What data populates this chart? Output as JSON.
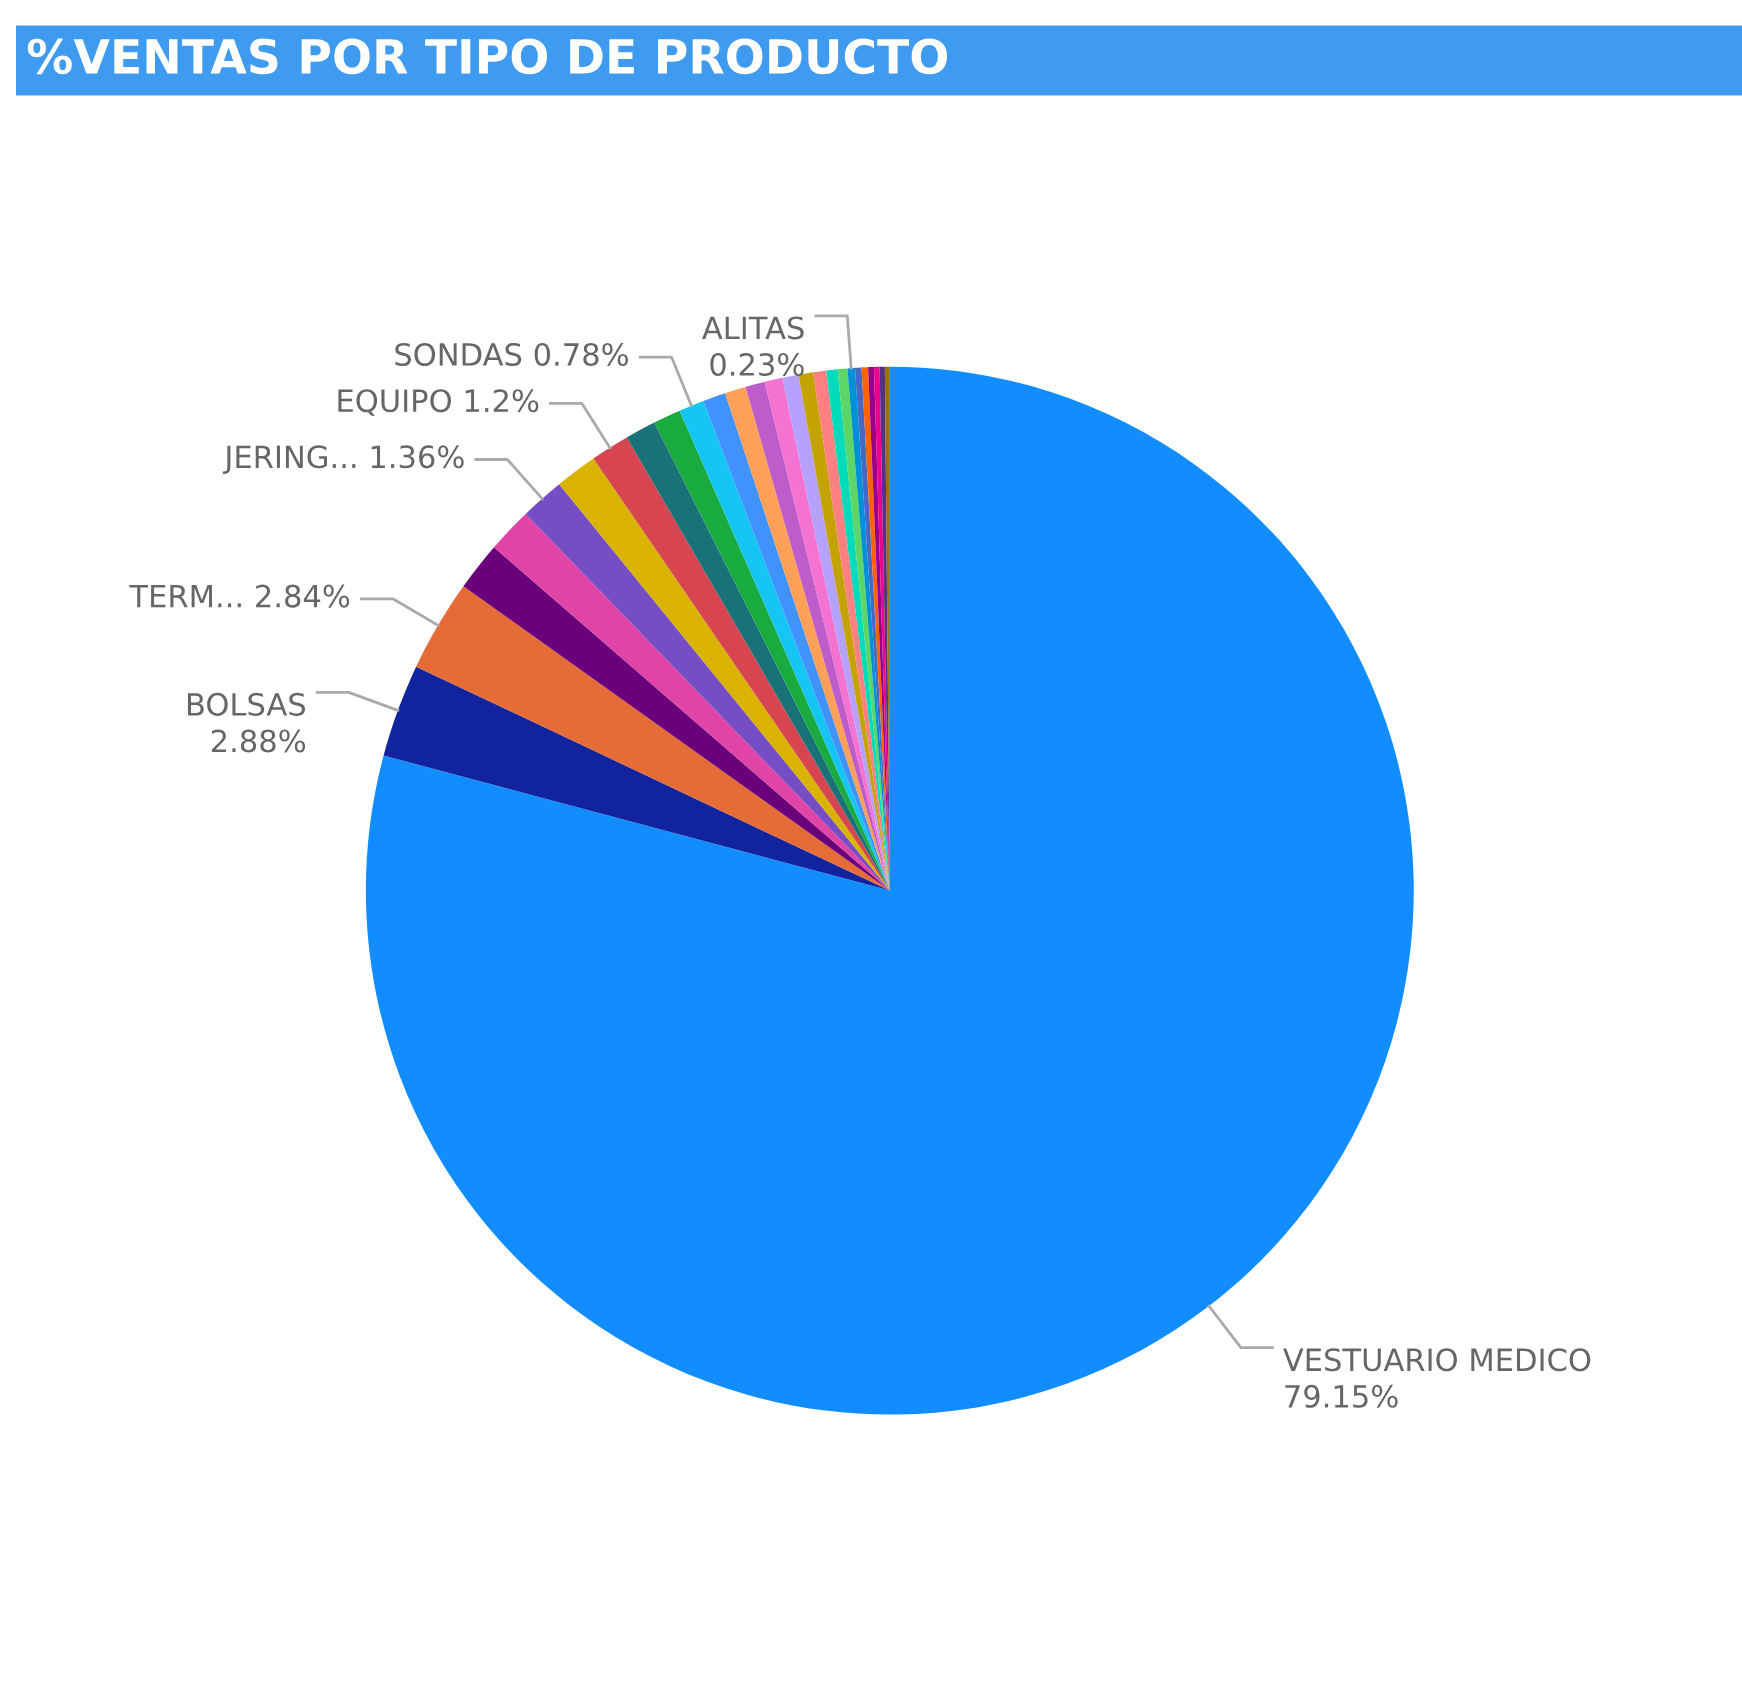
{
  "chart_data": {
    "type": "pie",
    "title": "%VENTAS POR TIPO DE PRODUCTO",
    "categories": [
      "VESTUARIO MEDICO",
      "BOLSAS",
      "TERM...",
      null,
      null,
      "JERING...",
      null,
      "EQUIPO",
      null,
      null,
      "SONDAS",
      null,
      null,
      null,
      null,
      null,
      null,
      null,
      null,
      null,
      "ALITAS",
      null,
      null,
      null,
      null,
      null,
      null
    ],
    "values": [
      79.15,
      2.88,
      2.84,
      1.5,
      1.4,
      1.36,
      1.3,
      1.2,
      0.95,
      0.85,
      0.78,
      0.7,
      0.65,
      0.6,
      0.55,
      0.5,
      0.45,
      0.4,
      0.35,
      0.3,
      0.23,
      0.2,
      0.2,
      0.18,
      0.17,
      0.16,
      0.15
    ],
    "value_labels": [
      "79.15%",
      "2.88%",
      "2.84%",
      null,
      null,
      "1.36%",
      null,
      "1.2%",
      null,
      null,
      "0.78%",
      null,
      null,
      null,
      null,
      null,
      null,
      null,
      null,
      null,
      "0.23%",
      null,
      null,
      null,
      null,
      null,
      null
    ],
    "colors": [
      "#118dff",
      "#12239e",
      "#e66c37",
      "#6b007b",
      "#e044a7",
      "#744ec2",
      "#d9b300",
      "#d64550",
      "#197278",
      "#1aab40",
      "#15c6f4",
      "#4092ff",
      "#ffa058",
      "#be5dc9",
      "#f472d0",
      "#b5a1ff",
      "#c4a200",
      "#ff8080",
      "#00dbbc",
      "#5bd667",
      "#0091d5",
      "#4668c5",
      "#ff6300",
      "#99008a",
      "#ec008c",
      "#533285",
      "#99700a"
    ],
    "legend": false
  }
}
